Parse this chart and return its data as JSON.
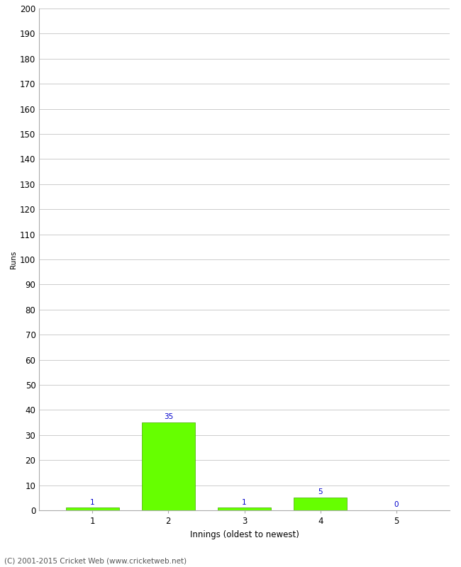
{
  "xlabel": "Innings (oldest to newest)",
  "ylabel": "Runs",
  "categories": [
    1,
    2,
    3,
    4,
    5
  ],
  "values": [
    1,
    35,
    1,
    5,
    0
  ],
  "bar_color": "#66ff00",
  "bar_edge_color": "#44aa00",
  "label_color": "#0000cc",
  "ylim": [
    0,
    200
  ],
  "yticks": [
    0,
    10,
    20,
    30,
    40,
    50,
    60,
    70,
    80,
    90,
    100,
    110,
    120,
    130,
    140,
    150,
    160,
    170,
    180,
    190,
    200
  ],
  "background_color": "#ffffff",
  "grid_color": "#cccccc",
  "footer": "(C) 2001-2015 Cricket Web (www.cricketweb.net)",
  "label_fontsize": 7.5,
  "axis_fontsize": 8.5,
  "ylabel_fontsize": 7.5,
  "footer_fontsize": 7.5
}
